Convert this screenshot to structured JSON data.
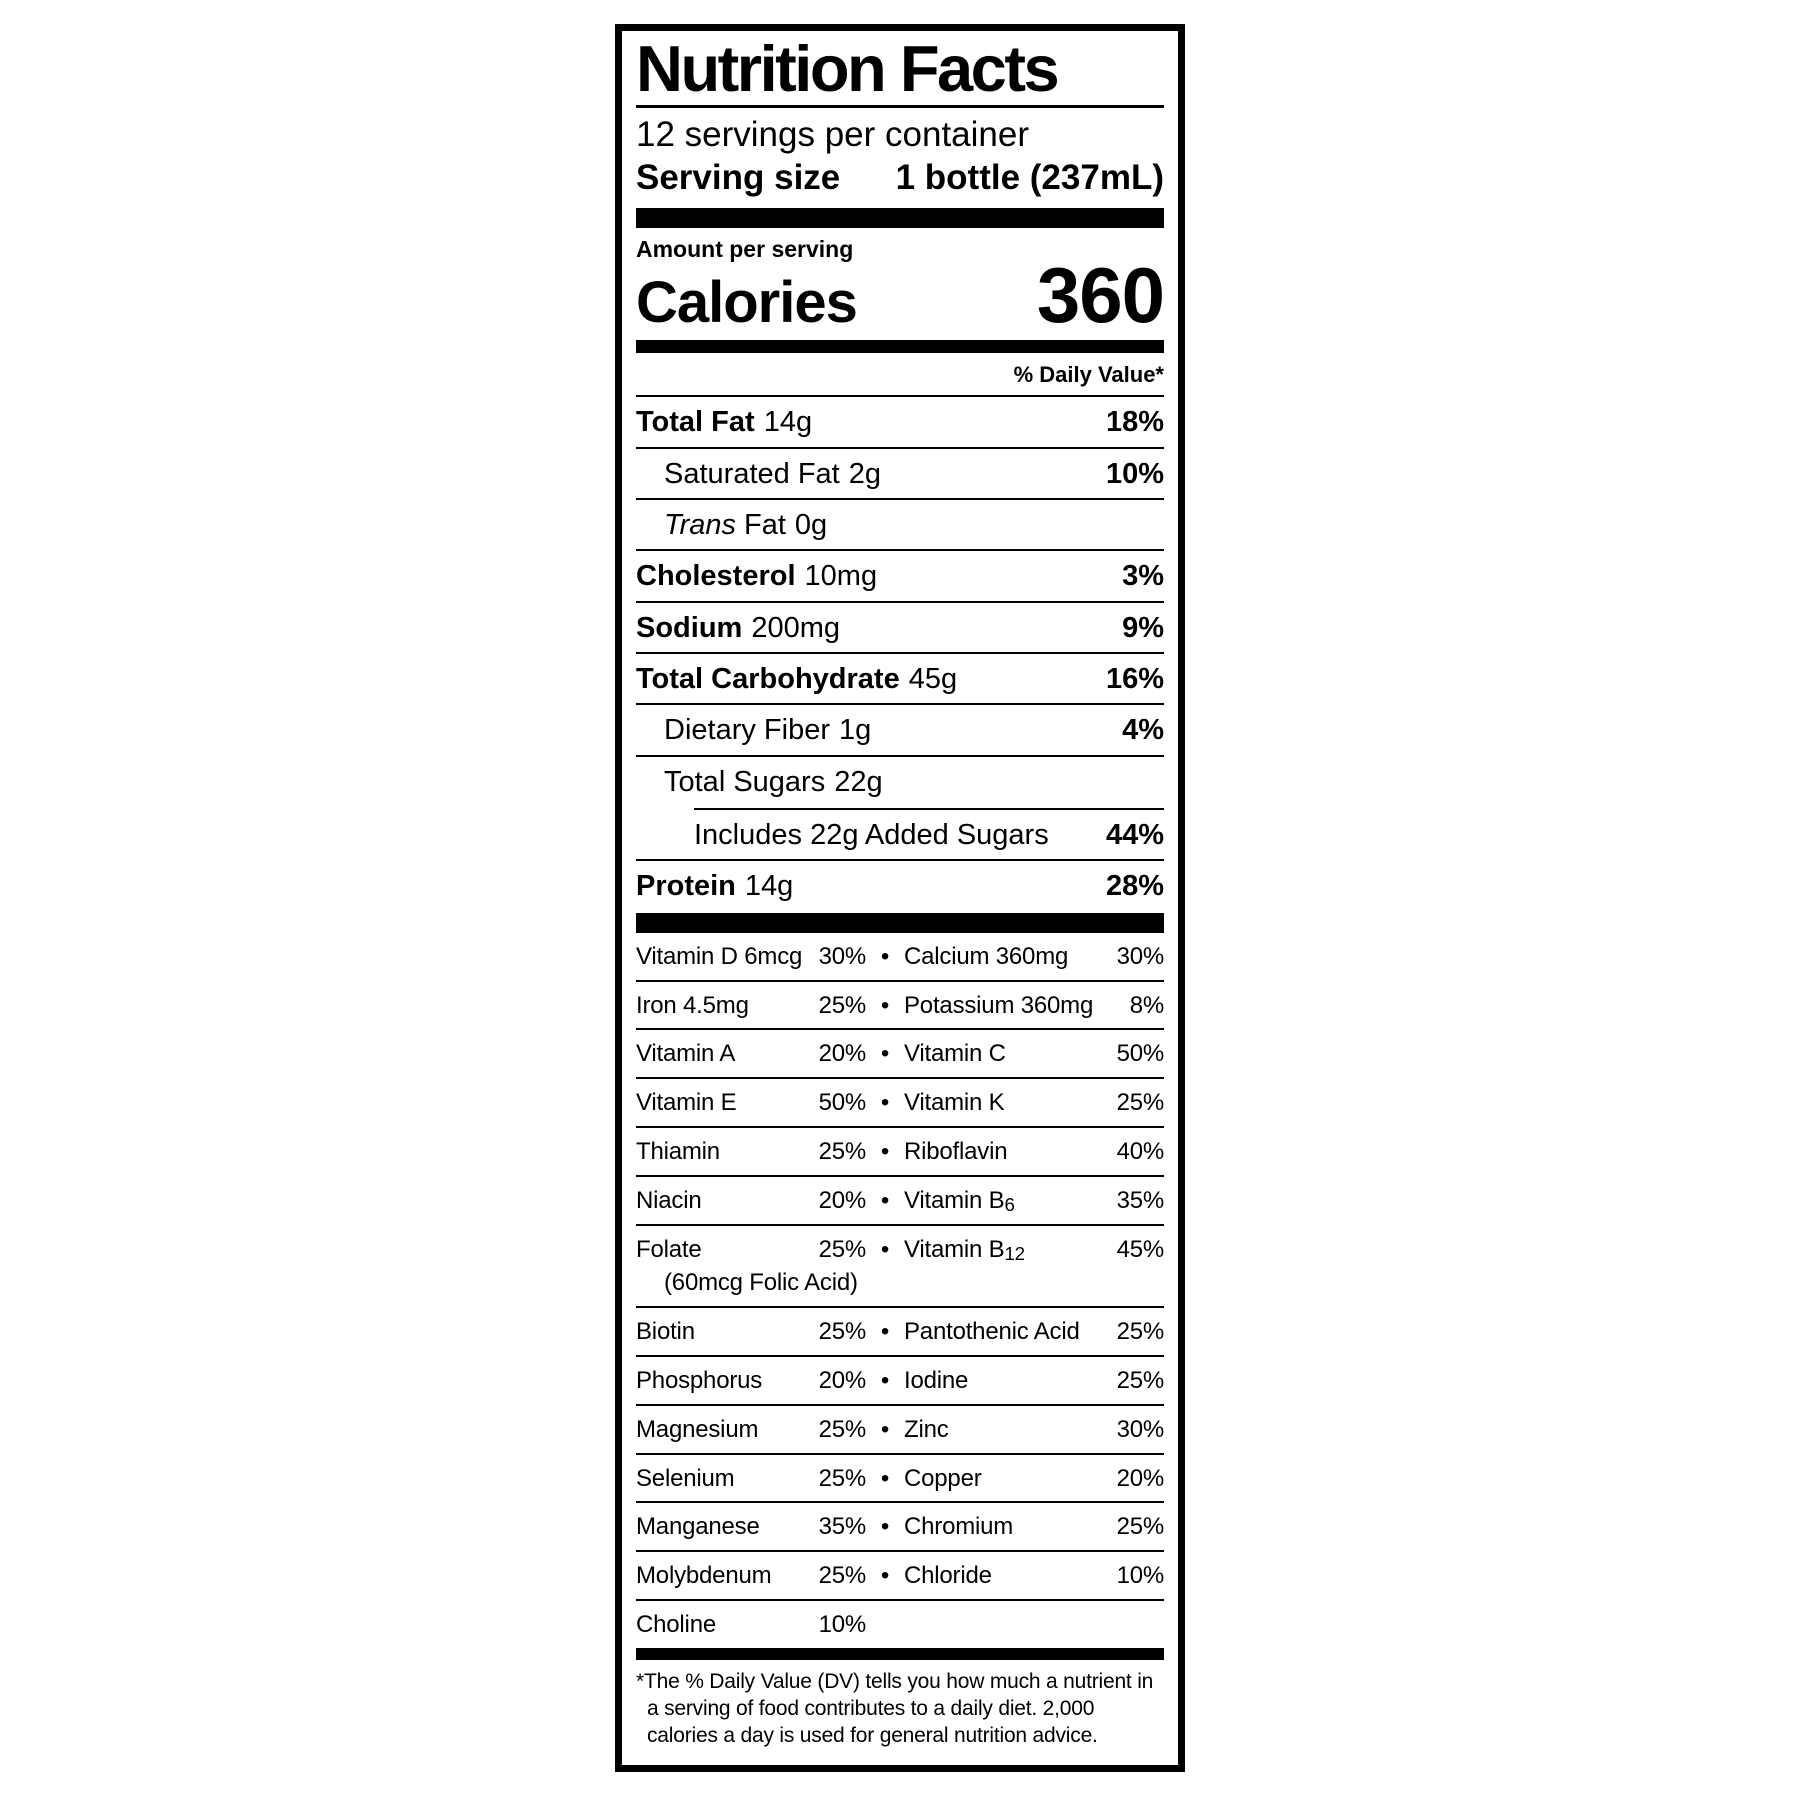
{
  "colors": {
    "ink": "#000000",
    "paper": "#ffffff"
  },
  "label": {
    "title": "Nutrition Facts",
    "servings_per_container": "12 servings per container",
    "serving_size": {
      "label": "Serving size",
      "value": "1 bottle (237mL)"
    },
    "amount_per_serving": "Amount per serving",
    "calories": {
      "label": "Calories",
      "value": "360"
    },
    "daily_value_header": "% Daily Value*",
    "bullet": "•",
    "macro_rows": [
      {
        "name": "Total Fat",
        "amount": "14g",
        "pct": "18%"
      },
      {
        "name": "Saturated Fat",
        "amount": "2g",
        "pct": "10%"
      },
      {
        "name_italic": "Trans",
        "name": "Fat",
        "amount": "0g",
        "pct": ""
      },
      {
        "name": "Cholesterol",
        "amount": "10mg",
        "pct": "3%"
      },
      {
        "name": "Sodium",
        "amount": "200mg",
        "pct": "9%"
      },
      {
        "name": "Total Carbohydrate",
        "amount": "45g",
        "pct": "16%"
      },
      {
        "name": "Dietary Fiber",
        "amount": "1g",
        "pct": "4%"
      },
      {
        "name": "Total Sugars",
        "amount": "22g",
        "pct": ""
      },
      {
        "name": "Includes 22g Added Sugars",
        "amount": "",
        "pct": "44%"
      },
      {
        "name": "Protein",
        "amount": "14g",
        "pct": "28%"
      }
    ],
    "micro_rows": [
      {
        "left": "Vitamin D 6mcg",
        "left_pct": "30%",
        "right": "Calcium 360mg",
        "right_pct": "30%"
      },
      {
        "left": "Iron 4.5mg",
        "left_pct": "25%",
        "right": "Potassium 360mg",
        "right_pct": "8%"
      },
      {
        "left": "Vitamin A",
        "left_pct": "20%",
        "right": "Vitamin C",
        "right_pct": "50%"
      },
      {
        "left": "Vitamin E",
        "left_pct": "50%",
        "right": "Vitamin K",
        "right_pct": "25%"
      },
      {
        "left": "Thiamin",
        "left_pct": "25%",
        "right": "Riboflavin",
        "right_pct": "40%"
      },
      {
        "left": "Niacin",
        "left_pct": "20%",
        "right": "Vitamin B",
        "right_sub": "6",
        "right_pct": "35%"
      },
      {
        "left": "Folate",
        "left_pct": "25%",
        "left_note": "(60mcg Folic Acid)",
        "right": "Vitamin B",
        "right_sub": "12",
        "right_pct": "45%"
      },
      {
        "left": "Biotin",
        "left_pct": "25%",
        "right": "Pantothenic Acid",
        "right_pct": "25%"
      },
      {
        "left": "Phosphorus",
        "left_pct": "20%",
        "right": "Iodine",
        "right_pct": "25%"
      },
      {
        "left": "Magnesium",
        "left_pct": "25%",
        "right": "Zinc",
        "right_pct": "30%"
      },
      {
        "left": "Selenium",
        "left_pct": "25%",
        "right": "Copper",
        "right_pct": "20%"
      },
      {
        "left": "Manganese",
        "left_pct": "35%",
        "right": "Chromium",
        "right_pct": "25%"
      },
      {
        "left": "Molybdenum",
        "left_pct": "25%",
        "right": "Chloride",
        "right_pct": "10%"
      },
      {
        "left": "Choline",
        "left_pct": "10%"
      }
    ],
    "footnote": "*The % Daily Value (DV) tells you how much a nutrient in a serving of food contributes to a daily diet. 2,000 calories a day is used for general nutrition advice."
  }
}
